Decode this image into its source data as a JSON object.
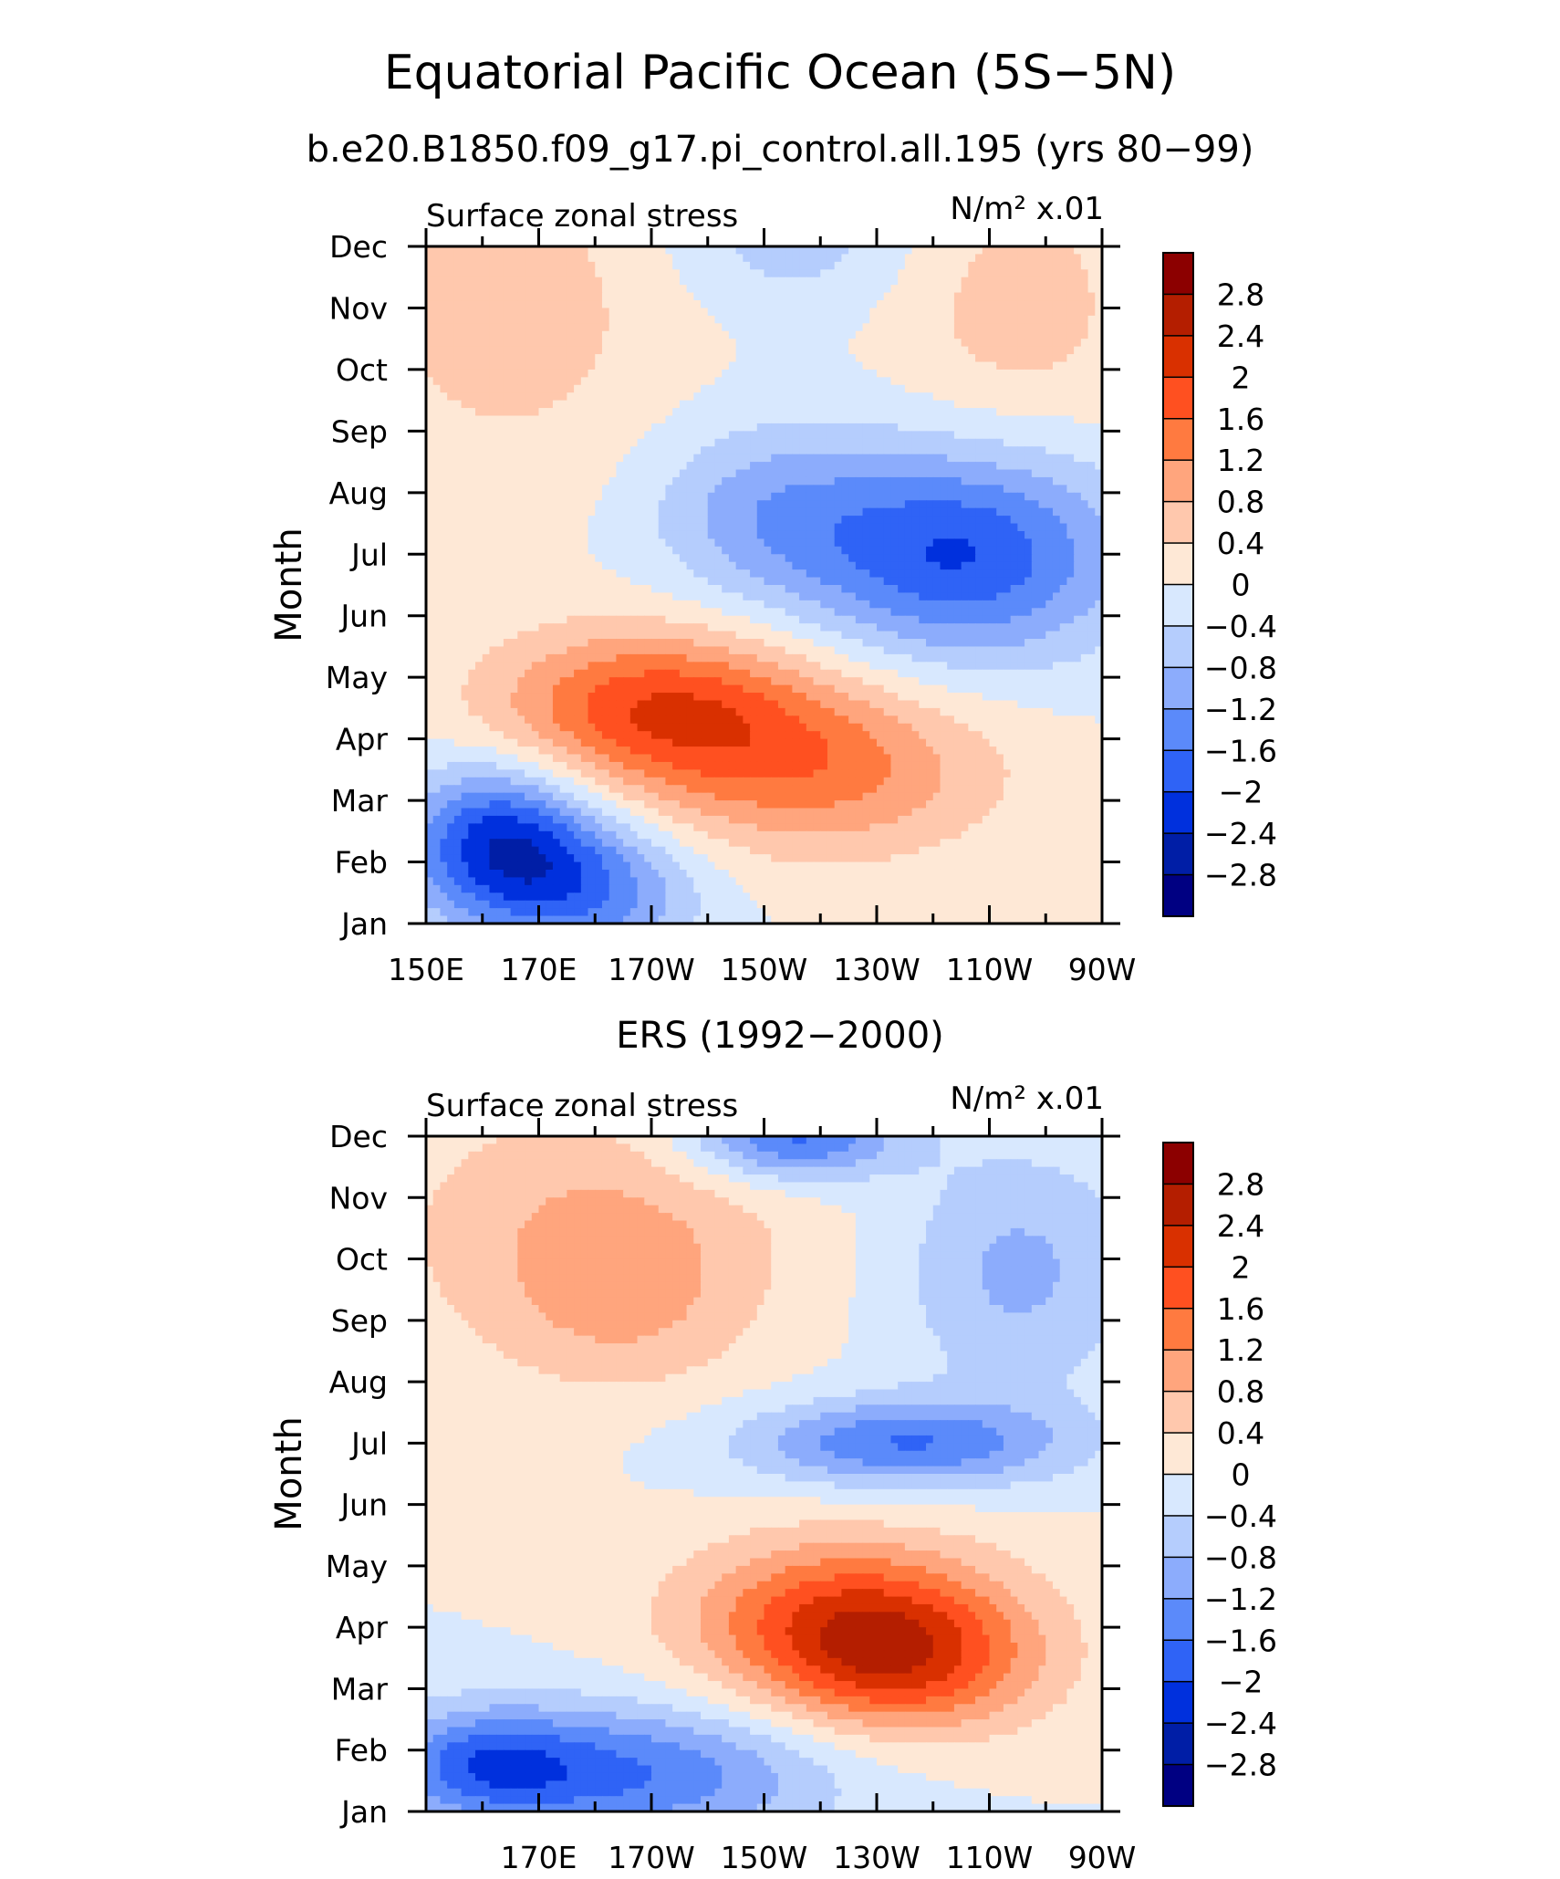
{
  "figure": {
    "title": "Equatorial Pacific Ocean (5S−5N)",
    "subtitle": "b.e20.B1850.f09_g17.pi_control.all.195 (yrs 80−99)",
    "panel2_title": "ERS (1992−2000)"
  },
  "colorbar": {
    "labels": [
      "2.8",
      "2.4",
      "2",
      "1.6",
      "1.2",
      "0.8",
      "0.4",
      "0",
      "−0.4",
      "−0.8",
      "−1.2",
      "−1.6",
      "−2",
      "−2.4",
      "−2.8"
    ],
    "colors": [
      "#8c0000",
      "#b41e00",
      "#d93000",
      "#ff5020",
      "#ff7a40",
      "#ffa57d",
      "#ffc8ad",
      "#fee8d6",
      "#d8e8fe",
      "#b5cdfd",
      "#8cacfc",
      "#5b8afa",
      "#2f63f6",
      "#0030dd",
      "#001ea6",
      "#000082"
    ]
  },
  "chart_data": [
    {
      "type": "heatmap",
      "label_left": "Surface zonal stress",
      "label_right": "N/m² x.01",
      "ylabel": "Month",
      "yticks": [
        "Jan",
        "Feb",
        "Mar",
        "Apr",
        "May",
        "Jun",
        "Jul",
        "Aug",
        "Sep",
        "Oct",
        "Nov",
        "Dec"
      ],
      "xticks": [
        "150E",
        "170E",
        "170W",
        "150W",
        "130W",
        "110W",
        "90W"
      ],
      "x_range": [
        150,
        270
      ],
      "levels": [
        -2.8,
        -2.4,
        -2,
        -1.6,
        -1.2,
        -0.8,
        -0.4,
        0,
        0.4,
        0.8,
        1.2,
        1.6,
        2,
        2.4,
        2.8
      ],
      "features": [
        {
          "lon": 165,
          "month": 11,
          "value": 0.6,
          "sx": 20,
          "sy": 2.0
        },
        {
          "lon": 255,
          "month": 11,
          "value": 0.6,
          "sx": 15,
          "sy": 1.5
        },
        {
          "lon": 215,
          "month": 12.1,
          "value": -0.6,
          "sx": 15,
          "sy": 0.8
        },
        {
          "lon": 245,
          "month": 7,
          "value": -2.0,
          "sx": 20,
          "sy": 1.2
        },
        {
          "lon": 210,
          "month": 7.7,
          "value": -0.9,
          "sx": 15,
          "sy": 1.0
        },
        {
          "lon": 190,
          "month": 4.5,
          "value": 1.8,
          "sx": 20,
          "sy": 0.9
        },
        {
          "lon": 220,
          "month": 3.5,
          "value": 1.3,
          "sx": 22,
          "sy": 1.0
        },
        {
          "lon": 163,
          "month": 2.3,
          "value": -2.2,
          "sx": 12,
          "sy": 0.9
        },
        {
          "lon": 180,
          "month": 1.5,
          "value": -1.3,
          "sx": 13,
          "sy": 0.8
        }
      ]
    },
    {
      "type": "heatmap",
      "label_left": "Surface zonal stress",
      "label_right": "N/m² x.01",
      "ylabel": "Month",
      "yticks": [
        "Jan",
        "Feb",
        "Mar",
        "Apr",
        "May",
        "Jun",
        "Jul",
        "Aug",
        "Sep",
        "Oct",
        "Nov",
        "Dec"
      ],
      "xticks": [
        "170E",
        "170W",
        "150W",
        "130W",
        "110W",
        "90W"
      ],
      "x_range": [
        150,
        270
      ],
      "levels": [
        -2.8,
        -2.4,
        -2,
        -1.6,
        -1.2,
        -0.8,
        -0.4,
        0,
        0.4,
        0.8,
        1.2,
        1.6,
        2,
        2.4,
        2.8
      ],
      "features": [
        {
          "lon": 215,
          "month": 12.0,
          "value": -1.8,
          "sx": 13,
          "sy": 0.5
        },
        {
          "lon": 255,
          "month": 9.8,
          "value": -0.9,
          "sx": 15,
          "sy": 1.4
        },
        {
          "lon": 180,
          "month": 10.5,
          "value": 0.8,
          "sx": 25,
          "sy": 1.5
        },
        {
          "lon": 185,
          "month": 9.2,
          "value": 0.5,
          "sx": 15,
          "sy": 1.0
        },
        {
          "lon": 235,
          "month": 7,
          "value": -1.6,
          "sx": 20,
          "sy": 0.5
        },
        {
          "lon": 225,
          "month": 4.2,
          "value": 1.8,
          "sx": 20,
          "sy": 0.9
        },
        {
          "lon": 235,
          "month": 3.3,
          "value": 1.5,
          "sx": 17,
          "sy": 0.8
        },
        {
          "lon": 185,
          "month": 1.6,
          "value": -1.6,
          "sx": 25,
          "sy": 0.8
        },
        {
          "lon": 160,
          "month": 1.8,
          "value": -1.2,
          "sx": 12,
          "sy": 0.6
        }
      ]
    }
  ]
}
